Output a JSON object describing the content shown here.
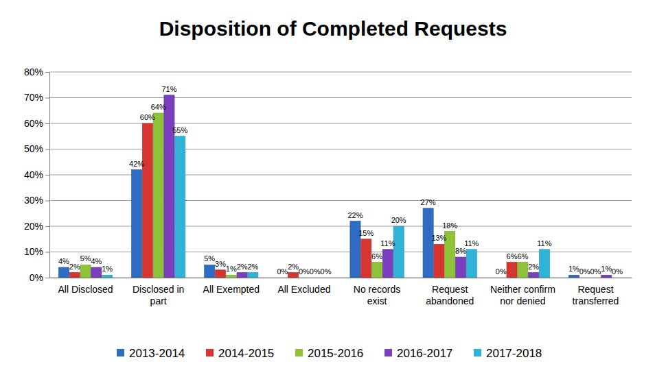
{
  "chart_data": {
    "type": "bar",
    "title": "Disposition of Completed Requests",
    "categories": [
      "All Disclosed",
      "Disclosed in part",
      "All Exempted",
      "All Excluded",
      "No records exist",
      "Request abandoned",
      "Neither confirm nor denied",
      "Request transferred"
    ],
    "series": [
      {
        "name": "2013-2014",
        "color": "#2f6cc4",
        "values": [
          4,
          42,
          5,
          0,
          22,
          27,
          0,
          1
        ],
        "value_labels": [
          "4%",
          "42%",
          "5%",
          "0%",
          "22%",
          "27%",
          "0%",
          "1%"
        ]
      },
      {
        "name": "2014-2015",
        "color": "#d63531",
        "values": [
          2,
          60,
          3,
          2,
          15,
          13,
          6,
          0
        ],
        "value_labels": [
          "2%",
          "60%",
          "3%",
          "2%",
          "15%",
          "13%",
          "6%",
          "0%"
        ]
      },
      {
        "name": "2015-2016",
        "color": "#8fc33a",
        "values": [
          5,
          64,
          1,
          0,
          6,
          18,
          6,
          0
        ],
        "value_labels": [
          "5%",
          "64%",
          "1%",
          "0%",
          "6%",
          "18%",
          "6%",
          "0%"
        ]
      },
      {
        "name": "2016-2017",
        "color": "#7b3fbe",
        "values": [
          4,
          71,
          2,
          0,
          11,
          8,
          2,
          1
        ],
        "value_labels": [
          "4%",
          "71%",
          "2%",
          "0%",
          "11%",
          "8%",
          "2%",
          "1%"
        ]
      },
      {
        "name": "2017-2018",
        "color": "#2fb3d6",
        "values": [
          1,
          55,
          2,
          0,
          20,
          11,
          11,
          0
        ],
        "value_labels": [
          "1%",
          "55%",
          "2%",
          "0%",
          "20%",
          "11%",
          "11%",
          "0%"
        ]
      }
    ],
    "ylim": [
      0,
      80
    ],
    "yticks": [
      {
        "value": 0,
        "label": "0%"
      },
      {
        "value": 10,
        "label": "10%"
      },
      {
        "value": 20,
        "label": "20%"
      },
      {
        "value": 30,
        "label": "30%"
      },
      {
        "value": 40,
        "label": "40%"
      },
      {
        "value": 50,
        "label": "50%"
      },
      {
        "value": 60,
        "label": "60%"
      },
      {
        "value": 70,
        "label": "70%"
      },
      {
        "value": 80,
        "label": "80%"
      }
    ],
    "grid": true,
    "legend": "bottom",
    "data_labels": true
  }
}
